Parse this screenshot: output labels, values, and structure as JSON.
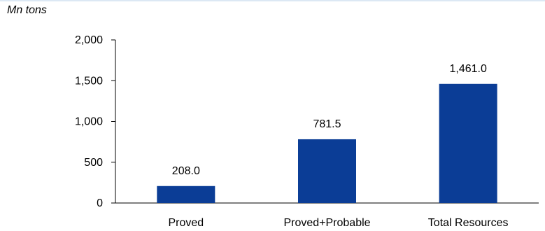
{
  "chart_data": {
    "type": "bar",
    "unit_label": "Mn tons",
    "categories": [
      "Proved",
      "Proved+Probable",
      "Total Resources"
    ],
    "values": [
      208.0,
      781.5,
      1461.0
    ],
    "value_labels": [
      "208.0",
      "781.5",
      "1,461.0"
    ],
    "yticks": [
      0,
      500,
      1000,
      1500,
      2000
    ],
    "ytick_labels": [
      "0",
      "500",
      "1,000",
      "1,500",
      "2,000"
    ],
    "ylim": [
      0,
      2000
    ],
    "grid": false,
    "bar_color": "#0b3d96"
  }
}
